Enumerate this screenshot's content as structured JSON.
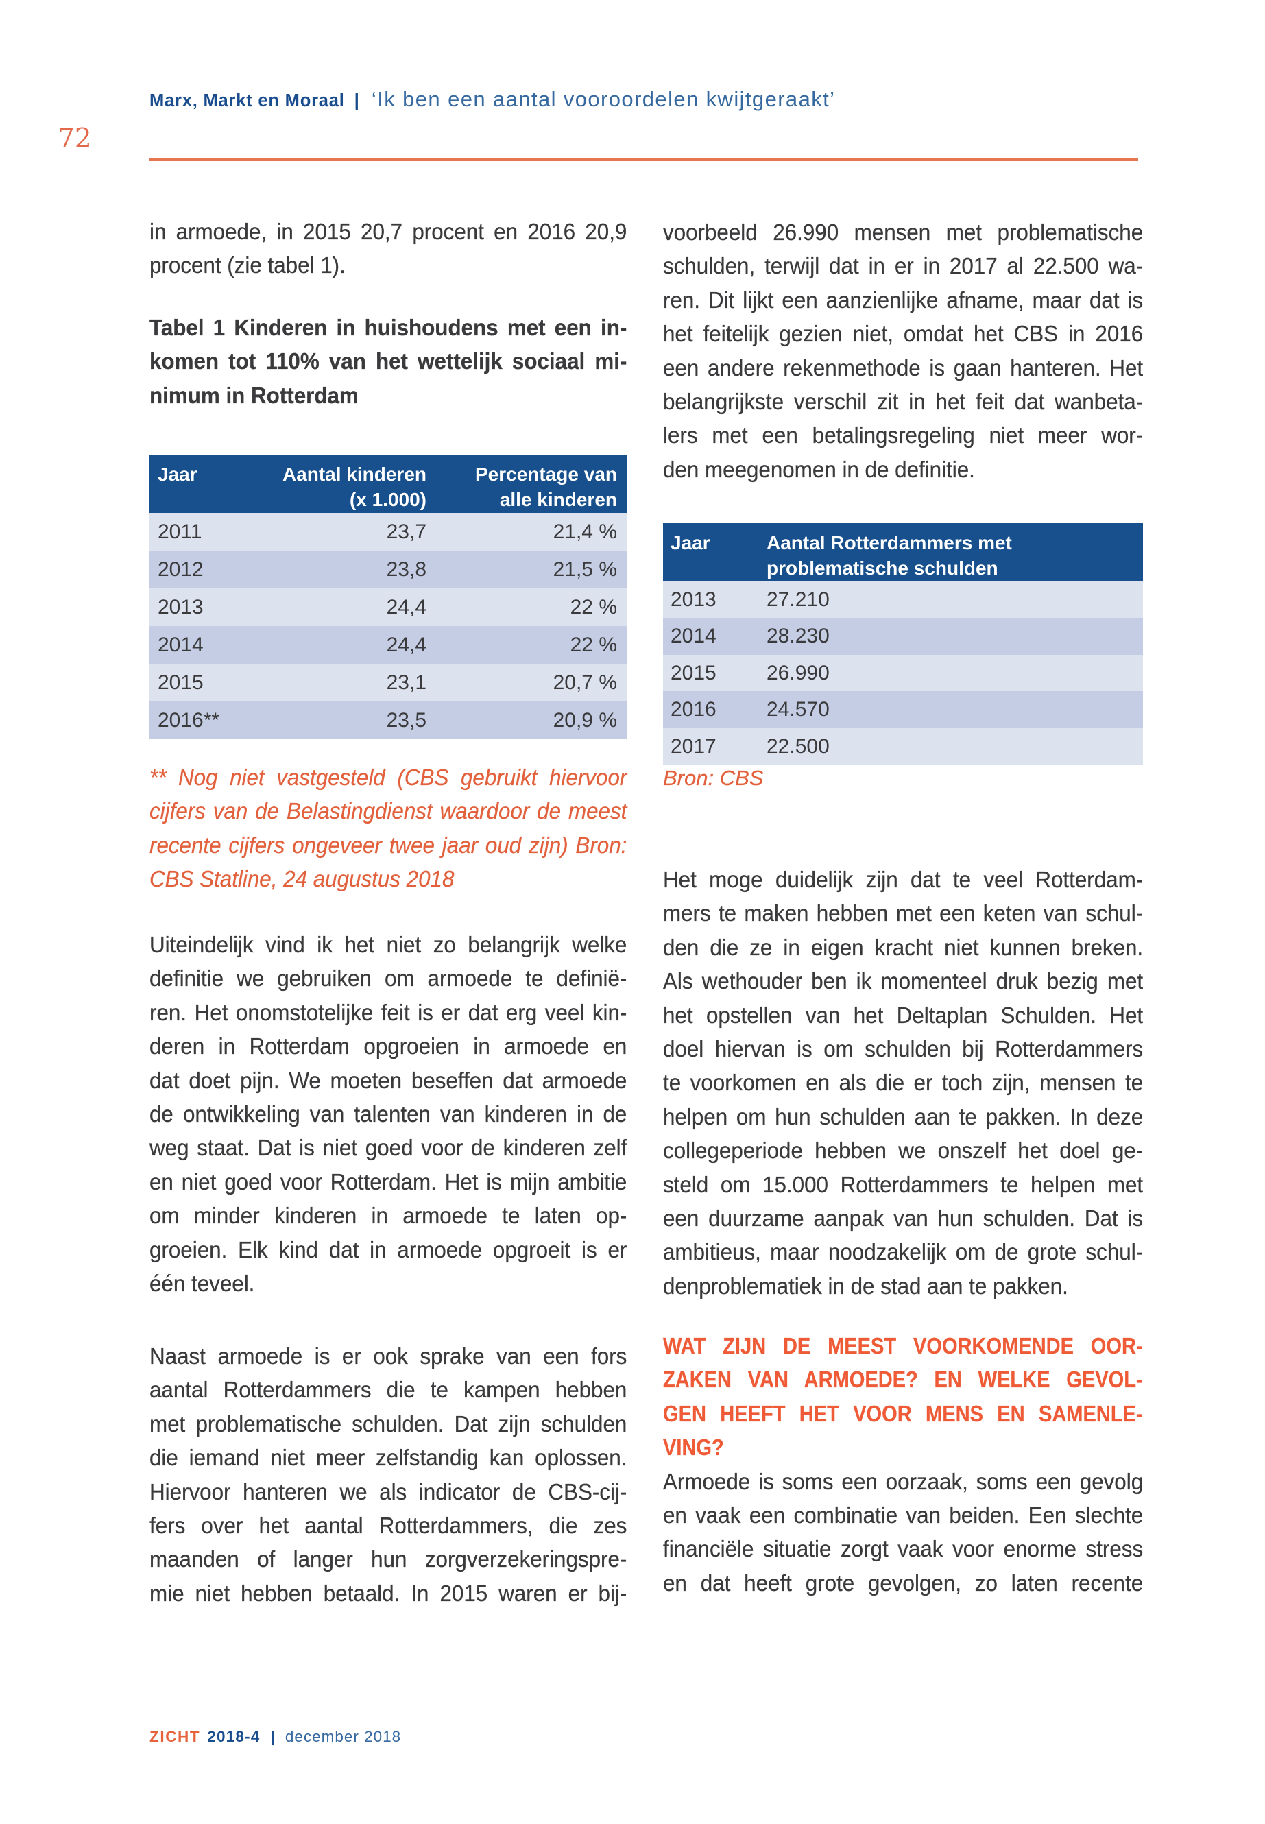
{
  "page_number": "72",
  "header": {
    "title": "Marx, Markt en Moraal",
    "separator": "|",
    "subtitle": "‘Ik ben een aantal vooroordelen kwijtgeraakt’"
  },
  "left_column": {
    "intro_lines": [
      "in armoede, in 2015 20,7 procent en 2016 20,9",
      "procent (zie tabel 1)."
    ],
    "table_caption_lines": [
      "Tabel 1 Kinderen in huishoudens met een in-",
      "komen tot 110% van het wettelijk sociaal mi-",
      "nimum in Rotterdam"
    ],
    "table1": {
      "h_year": "Jaar",
      "h_count_line1": "Aantal kinderen",
      "h_count_line2": "(x 1.000)",
      "h_pct_line1": "Percentage van",
      "h_pct_line2": "alle kinderen",
      "rows": [
        [
          "2011",
          "23,7",
          "21,4 %"
        ],
        [
          "2012",
          "23,8",
          "21,5 %"
        ],
        [
          "2013",
          "24,4",
          "22 %"
        ],
        [
          "2014",
          "24,4",
          "22 %"
        ],
        [
          "2015",
          "23,1",
          "20,7 %"
        ],
        [
          "2016**",
          "23,5",
          "20,9 %"
        ]
      ]
    },
    "footnote_lines": [
      "** Nog niet vastgesteld (CBS gebruikt hiervoor",
      "cijfers van de Belastingdienst waardoor de meest",
      "recente cijfers ongeveer twee jaar oud zijn) Bron:",
      "CBS Statline, 24 augustus 2018"
    ],
    "para1_lines": [
      "Uiteindelijk vind ik het niet zo belangrijk welke",
      "definitie we gebruiken om armoede te definië-",
      "ren. Het onomstotelijke feit is er dat erg veel kin-",
      "deren in Rotterdam opgroeien in armoede en",
      "dat doet pijn. We moeten beseffen dat armoede",
      "de ontwikkeling van talenten van kinderen in de",
      "weg staat. Dat is niet goed voor de kinderen zelf",
      "en niet goed voor Rotterdam. Het is mijn ambitie",
      "om minder kinderen in armoede te laten op-",
      "groeien. Elk kind dat in armoede opgroeit is er",
      "één teveel."
    ],
    "para2_lines": [
      "Naast armoede is er ook sprake van een fors",
      "aantal Rotterdammers die te kampen hebben",
      "met problematische schulden. Dat zijn schulden",
      "die iemand niet meer zelfstandig kan oplossen.",
      "Hiervoor hanteren we als indicator de CBS-cij-",
      "fers over het aantal Rotterdammers, die zes",
      "maanden of langer hun zorgverzekeringspre-",
      "mie niet hebben betaald. In 2015 waren er bij-"
    ]
  },
  "right_column": {
    "para1_lines": [
      "voorbeeld 26.990 mensen met problematische",
      "schulden, terwijl dat in er in 2017 al 22.500 wa-",
      "ren. Dit lijkt een aanzienlijke afname, maar dat is",
      "het feitelijk gezien niet, omdat het CBS in 2016",
      "een andere rekenmethode is gaan hanteren. Het",
      "belangrijkste verschil zit in het feit dat wanbeta-",
      "lers met een betalingsregeling niet meer wor-",
      "den meegenomen in de definitie."
    ],
    "table2": {
      "h_year": "Jaar",
      "h_col_line1": "Aantal Rotterdammers met",
      "h_col_line2": "problematische schulden",
      "rows": [
        [
          "2013",
          "27.210"
        ],
        [
          "2014",
          "28.230"
        ],
        [
          "2015",
          "26.990"
        ],
        [
          "2016",
          "24.570"
        ],
        [
          "2017",
          "22.500"
        ]
      ]
    },
    "source_note": "Bron: CBS",
    "para2_lines": [
      "Het moge duidelijk zijn dat te veel Rotterdam-",
      "mers te maken hebben met een keten van schul-",
      "den die ze in eigen kracht niet kunnen breken.",
      "Als wethouder ben ik momenteel druk bezig met",
      "het opstellen van het Deltaplan Schulden. Het",
      "doel hiervan is om schulden bij Rotterdammers",
      "te voorkomen en als die er toch zijn, mensen te",
      "helpen om hun schulden aan te pakken. In deze",
      "collegeperiode hebben we onszelf het doel ge-",
      "steld om 15.000 Rotterdammers te helpen met",
      "een duurzame aanpak van hun schulden. Dat is",
      "ambitieus, maar noodzakelijk om de grote schul-",
      "denproblematiek in de stad aan te pakken."
    ],
    "heading_lines": [
      "WAT ZIJN DE MEEST VOORKOMENDE OOR-",
      "ZAKEN VAN ARMOEDE? EN WELKE GEVOL-",
      "GEN HEEFT HET VOOR MENS EN SAMENLE-",
      "VING?"
    ],
    "para3_lines": [
      "Armoede is soms een oorzaak, soms een gevolg",
      "en vaak een combinatie van beiden. Een slechte",
      "financiële situatie zorgt vaak voor enorme stress",
      "en dat heeft grote gevolgen, zo laten recente"
    ]
  },
  "footer": {
    "brand": "ZICHT",
    "issue": "2018-4",
    "separator": "|",
    "date": "december 2018"
  }
}
